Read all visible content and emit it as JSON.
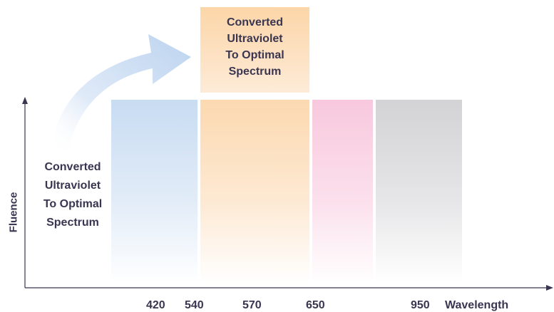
{
  "top_box": {
    "lines": [
      "Converted",
      "Ultraviolet",
      "To Optimal",
      "Spectrum"
    ]
  },
  "left_text": {
    "lines": [
      "Converted",
      "Ultraviolet",
      "To Optimal",
      "Spectrum"
    ]
  },
  "axes": {
    "y_label": "Fluence",
    "x_label": "Wavelength",
    "x_ticks": [
      "420",
      "540",
      "570",
      "650",
      "950"
    ]
  },
  "bands": [
    {
      "name": "blue",
      "color": "#c8dcf2"
    },
    {
      "name": "orange",
      "color": "#fcd9b0"
    },
    {
      "name": "pink",
      "color": "#f8c8de"
    },
    {
      "name": "gray",
      "color": "#d3d3d5"
    }
  ],
  "colors": {
    "text": "#3a3550",
    "axis": "#3a3550",
    "arrow": "#c9dcf2"
  }
}
